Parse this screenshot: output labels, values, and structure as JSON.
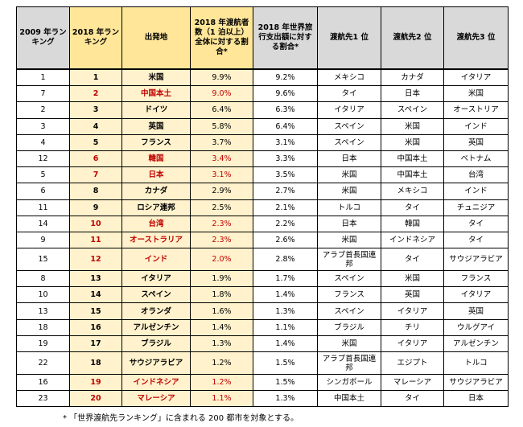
{
  "headers": {
    "rank2009": "2009 年ランキング",
    "rank2018": "2018 年ランキング",
    "origin": "出発地",
    "share_travelers": "2018 年渡航者数（1 泊以上）全体に対する割合*",
    "share_spending": "2018 年世界旅行支出額に対する割合*",
    "dest1": "渡航先1 位",
    "dest2": "渡航先2 位",
    "dest3": "渡航先3 位"
  },
  "rows": [
    {
      "r2009": "1",
      "r2018": "1",
      "origin": "米国",
      "pct18": "9.9%",
      "spend": "9.2%",
      "d1": "メキシコ",
      "d2": "カナダ",
      "d3": "イタリア",
      "hot": false
    },
    {
      "r2009": "7",
      "r2018": "2",
      "origin": "中国本土",
      "pct18": "9.0%",
      "spend": "9.6%",
      "d1": "タイ",
      "d2": "日本",
      "d3": "米国",
      "hot": true
    },
    {
      "r2009": "2",
      "r2018": "3",
      "origin": "ドイツ",
      "pct18": "6.4%",
      "spend": "6.3%",
      "d1": "イタリア",
      "d2": "スペイン",
      "d3": "オーストリア",
      "hot": false
    },
    {
      "r2009": "3",
      "r2018": "4",
      "origin": "英国",
      "pct18": "5.8%",
      "spend": "6.4%",
      "d1": "スペイン",
      "d2": "米国",
      "d3": "インド",
      "hot": false
    },
    {
      "r2009": "4",
      "r2018": "5",
      "origin": "フランス",
      "pct18": "3.7%",
      "spend": "3.1%",
      "d1": "スペイン",
      "d2": "米国",
      "d3": "英国",
      "hot": false
    },
    {
      "r2009": "12",
      "r2018": "6",
      "origin": "韓国",
      "pct18": "3.4%",
      "spend": "3.3%",
      "d1": "日本",
      "d2": "中国本土",
      "d3": "ベトナム",
      "hot": true
    },
    {
      "r2009": "5",
      "r2018": "7",
      "origin": "日本",
      "pct18": "3.1%",
      "spend": "3.5%",
      "d1": "米国",
      "d2": "中国本土",
      "d3": "台湾",
      "hot": true
    },
    {
      "r2009": "6",
      "r2018": "8",
      "origin": "カナダ",
      "pct18": "2.9%",
      "spend": "2.7%",
      "d1": "米国",
      "d2": "メキシコ",
      "d3": "インド",
      "hot": false
    },
    {
      "r2009": "11",
      "r2018": "9",
      "origin": "ロシア連邦",
      "pct18": "2.5%",
      "spend": "2.1%",
      "d1": "トルコ",
      "d2": "タイ",
      "d3": "チュニジア",
      "hot": false
    },
    {
      "r2009": "14",
      "r2018": "10",
      "origin": "台湾",
      "pct18": "2.3%",
      "spend": "2.2%",
      "d1": "日本",
      "d2": "韓国",
      "d3": "タイ",
      "hot": true
    },
    {
      "r2009": "9",
      "r2018": "11",
      "origin": "オーストラリア",
      "pct18": "2.3%",
      "spend": "2.6%",
      "d1": "米国",
      "d2": "インドネシア",
      "d3": "タイ",
      "hot": true
    },
    {
      "r2009": "15",
      "r2018": "12",
      "origin": "インド",
      "pct18": "2.0%",
      "spend": "2.8%",
      "d1": "アラブ首長国連邦",
      "d2": "タイ",
      "d3": "サウジアラビア",
      "hot": true,
      "tall": true
    },
    {
      "r2009": "8",
      "r2018": "13",
      "origin": "イタリア",
      "pct18": "1.9%",
      "spend": "1.7%",
      "d1": "スペイン",
      "d2": "米国",
      "d3": "フランス",
      "hot": false
    },
    {
      "r2009": "10",
      "r2018": "14",
      "origin": "スペイン",
      "pct18": "1.8%",
      "spend": "1.4%",
      "d1": "フランス",
      "d2": "英国",
      "d3": "イタリア",
      "hot": false
    },
    {
      "r2009": "13",
      "r2018": "15",
      "origin": "オランダ",
      "pct18": "1.6%",
      "spend": "1.3%",
      "d1": "スペイン",
      "d2": "イタリア",
      "d3": "英国",
      "hot": false
    },
    {
      "r2009": "18",
      "r2018": "16",
      "origin": "アルゼンチン",
      "pct18": "1.4%",
      "spend": "1.1%",
      "d1": "ブラジル",
      "d2": "チリ",
      "d3": "ウルグアイ",
      "hot": false
    },
    {
      "r2009": "19",
      "r2018": "17",
      "origin": "ブラジル",
      "pct18": "1.3%",
      "spend": "1.4%",
      "d1": "米国",
      "d2": "イタリア",
      "d3": "アルゼンチン",
      "hot": false
    },
    {
      "r2009": "22",
      "r2018": "18",
      "origin": "サウジアラビア",
      "pct18": "1.2%",
      "spend": "1.5%",
      "d1": "アラブ首長国連邦",
      "d2": "エジプト",
      "d3": "トルコ",
      "hot": false,
      "tall": true
    },
    {
      "r2009": "16",
      "r2018": "19",
      "origin": "インドネシア",
      "pct18": "1.2%",
      "spend": "1.5%",
      "d1": "シンガポール",
      "d2": "マレーシア",
      "d3": "サウジアラビア",
      "hot": true
    },
    {
      "r2009": "23",
      "r2018": "20",
      "origin": "マレーシア",
      "pct18": "1.1%",
      "spend": "1.3%",
      "d1": "中国本土",
      "d2": "タイ",
      "d3": "日本",
      "hot": true
    }
  ],
  "footnote": "* 「世界渡航先ランキング」に含まれる 200 都市を対象とする。"
}
